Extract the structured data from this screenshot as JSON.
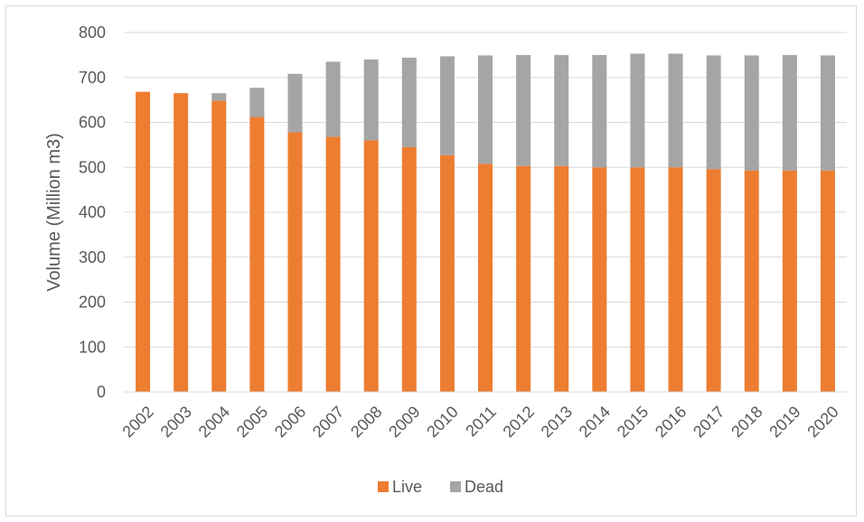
{
  "chart_data": {
    "type": "bar",
    "stacked": true,
    "title": "",
    "xlabel": "",
    "ylabel": "Volume (Million m3)",
    "ylim": [
      0,
      800
    ],
    "yticks": [
      0,
      100,
      200,
      300,
      400,
      500,
      600,
      700,
      800
    ],
    "grid": true,
    "legend_position": "bottom",
    "categories": [
      "2002",
      "2003",
      "2004",
      "2005",
      "2006",
      "2007",
      "2008",
      "2009",
      "2010",
      "2011",
      "2012",
      "2013",
      "2014",
      "2015",
      "2016",
      "2017",
      "2018",
      "2019",
      "2020"
    ],
    "series": [
      {
        "name": "Live",
        "color": "#ED7D31",
        "values": [
          668,
          665,
          648,
          612,
          578,
          568,
          560,
          545,
          527,
          508,
          503,
          503,
          500,
          500,
          500,
          496,
          493,
          493,
          493
        ]
      },
      {
        "name": "Dead",
        "color": "#A5A5A5",
        "values": [
          0,
          0,
          17,
          65,
          130,
          167,
          180,
          199,
          220,
          241,
          247,
          247,
          250,
          253,
          253,
          253,
          256,
          257,
          256
        ]
      }
    ]
  }
}
